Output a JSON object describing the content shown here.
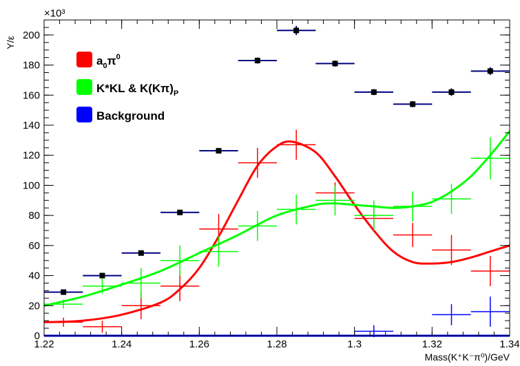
{
  "chart_data": {
    "type": "scatter",
    "xlabel": "Mass(K⁺K⁻π⁰)/GeV",
    "ylabel": "Y/ε",
    "y_multiplier": "×10³",
    "xlim": [
      1.22,
      1.34
    ],
    "ylim": [
      0,
      210
    ],
    "x_ticks": [
      "1.22",
      "1.24",
      "1.26",
      "1.28",
      "1.3",
      "1.32",
      "1.34"
    ],
    "x_tick_values": [
      1.22,
      1.24,
      1.26,
      1.28,
      1.3,
      1.32,
      1.34
    ],
    "y_ticks": [
      "0",
      "20",
      "40",
      "60",
      "80",
      "100",
      "120",
      "140",
      "160",
      "180",
      "200"
    ],
    "y_tick_values": [
      0,
      20,
      40,
      60,
      80,
      100,
      120,
      140,
      160,
      180,
      200
    ],
    "x_bin_half_width": 0.005,
    "legend": {
      "placement": "top-left",
      "entries": [
        {
          "label_main": "a",
          "label_sub": "0",
          "label_main2": "π",
          "label_sup": "0",
          "color": "#ff0000"
        },
        {
          "label_main": "K*KL & K(Kπ)",
          "label_sub": "P",
          "color": "#00ff00"
        },
        {
          "label_main": "Background",
          "color": "#0000ff"
        }
      ]
    },
    "series": [
      {
        "kind": "points",
        "color": "#000080",
        "x": [
          1.225,
          1.235,
          1.245,
          1.255,
          1.265,
          1.275,
          1.285,
          1.295,
          1.305,
          1.315,
          1.325,
          1.335
        ],
        "y": [
          29,
          40,
          55,
          82,
          123,
          183,
          203,
          181,
          162,
          154,
          162,
          176
        ],
        "yerr": [
          1.5,
          1.5,
          1.5,
          1.5,
          1.5,
          2,
          3,
          2,
          2,
          2,
          2.5,
          2.5
        ]
      },
      {
        "kind": "crosses",
        "color": "#ff0000",
        "x": [
          1.225,
          1.235,
          1.245,
          1.255,
          1.265,
          1.275,
          1.285,
          1.295,
          1.305,
          1.315,
          1.325,
          1.335
        ],
        "y": [
          9,
          6,
          20,
          33,
          71,
          115,
          127,
          95,
          78,
          67,
          57,
          43
        ],
        "yerr": [
          3,
          4,
          9,
          10,
          10,
          10,
          10,
          7,
          8,
          8,
          10,
          10
        ]
      },
      {
        "kind": "crosses",
        "color": "#00ff00",
        "x": [
          1.225,
          1.235,
          1.245,
          1.255,
          1.265,
          1.275,
          1.285,
          1.295,
          1.305,
          1.315,
          1.325,
          1.335
        ],
        "y": [
          21,
          33,
          35,
          50,
          56,
          73,
          84,
          90,
          80,
          86,
          91,
          118
        ],
        "yerr": [
          3,
          5,
          10,
          10,
          10,
          10,
          10,
          10,
          10,
          10,
          10,
          14
        ]
      },
      {
        "kind": "crosses",
        "color": "#0000ff",
        "x": [
          1.305,
          1.325,
          1.335
        ],
        "y": [
          3,
          14,
          16
        ],
        "yerr": [
          4,
          7,
          10
        ]
      },
      {
        "kind": "curve",
        "color": "#ff0000",
        "x": [
          1.22,
          1.23,
          1.24,
          1.25,
          1.255,
          1.26,
          1.265,
          1.27,
          1.275,
          1.28,
          1.284,
          1.29,
          1.295,
          1.3,
          1.305,
          1.31,
          1.315,
          1.32,
          1.325,
          1.33,
          1.335,
          1.34
        ],
        "y": [
          9,
          10,
          14,
          22,
          31,
          45,
          66,
          90,
          113,
          126,
          129,
          122,
          106,
          87,
          70,
          56,
          49,
          48,
          49,
          52,
          56,
          60
        ]
      },
      {
        "kind": "curve",
        "color": "#00ff00",
        "x": [
          1.22,
          1.23,
          1.24,
          1.25,
          1.26,
          1.27,
          1.28,
          1.29,
          1.295,
          1.3,
          1.305,
          1.31,
          1.315,
          1.32,
          1.325,
          1.33,
          1.335,
          1.34
        ],
        "y": [
          20,
          26,
          34,
          43,
          55,
          67,
          80,
          87,
          88,
          87,
          86,
          85,
          86,
          89,
          96,
          106,
          120,
          136
        ]
      },
      {
        "kind": "curve",
        "color": "#0000ff",
        "x": [
          1.22,
          1.34
        ],
        "y": [
          0,
          0
        ]
      }
    ]
  }
}
